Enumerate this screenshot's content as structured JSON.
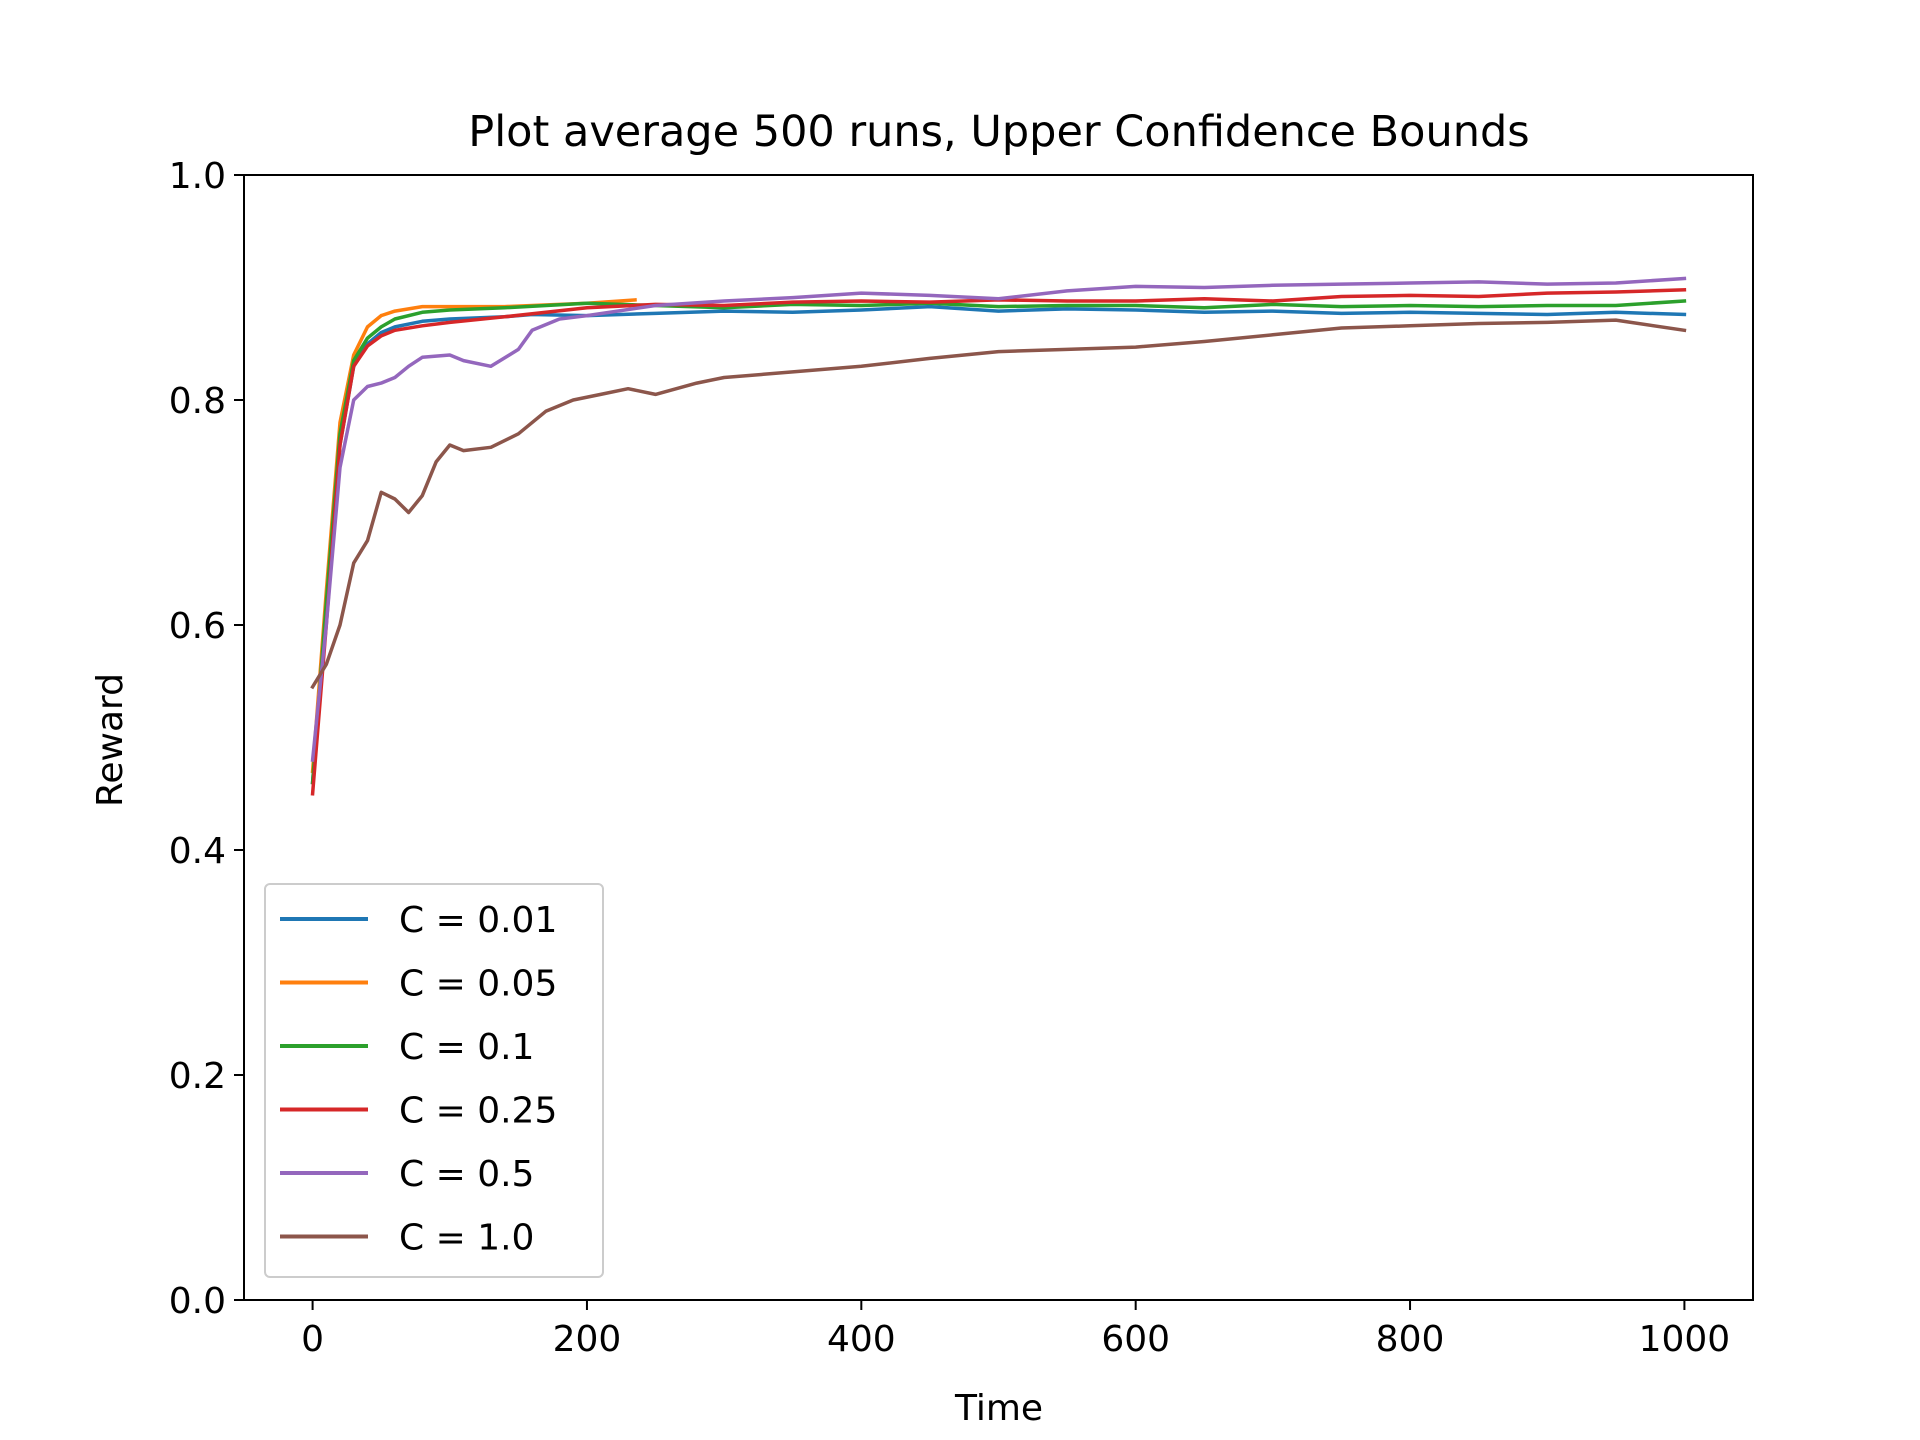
{
  "chart_data": {
    "type": "line",
    "title": "Plot average 500 runs, Upper Confidence Bounds",
    "xlabel": "Time",
    "ylabel": "Reward",
    "xlim": [
      -50,
      1050
    ],
    "ylim": [
      0,
      1
    ],
    "xticks": [
      0,
      200,
      400,
      600,
      800,
      1000
    ],
    "xtick_labels": [
      "0",
      "200",
      "400",
      "600",
      "800",
      "1000"
    ],
    "yticks": [
      0,
      0.2,
      0.4,
      0.6,
      0.8,
      1.0
    ],
    "ytick_labels": [
      "0.0",
      "0.2",
      "0.4",
      "0.6",
      "0.8",
      "1.0"
    ],
    "grid": false,
    "legend_position": "lower-left",
    "series": [
      {
        "name": "C = 0.01",
        "color": "#1f77b4",
        "x": [
          0,
          10,
          20,
          30,
          40,
          50,
          60,
          80,
          100,
          140,
          160,
          200,
          250,
          300,
          350,
          400,
          450,
          500,
          550,
          600,
          650,
          700,
          750,
          800,
          850,
          900,
          950,
          1000
        ],
        "y": [
          0.46,
          0.62,
          0.76,
          0.83,
          0.85,
          0.86,
          0.865,
          0.87,
          0.872,
          0.874,
          0.876,
          0.875,
          0.877,
          0.879,
          0.878,
          0.88,
          0.883,
          0.879,
          0.881,
          0.88,
          0.878,
          0.879,
          0.877,
          0.878,
          0.877,
          0.876,
          0.878,
          0.876
        ]
      },
      {
        "name": "C = 0.05",
        "color": "#ff7f0e",
        "x": [
          0,
          10,
          20,
          30,
          40,
          50,
          60,
          80,
          100,
          140,
          180,
          200,
          235
        ],
        "y": [
          0.47,
          0.63,
          0.78,
          0.84,
          0.865,
          0.875,
          0.879,
          0.883,
          0.883,
          0.883,
          0.885,
          0.886,
          0.889
        ]
      },
      {
        "name": "C = 0.1",
        "color": "#2ca02c",
        "x": [
          0,
          10,
          20,
          30,
          40,
          50,
          60,
          80,
          100,
          140,
          200,
          250,
          300,
          350,
          400,
          450,
          500,
          550,
          600,
          650,
          700,
          750,
          800,
          850,
          900,
          950,
          1000
        ],
        "y": [
          0.46,
          0.62,
          0.77,
          0.835,
          0.855,
          0.865,
          0.872,
          0.878,
          0.88,
          0.882,
          0.886,
          0.884,
          0.882,
          0.885,
          0.884,
          0.886,
          0.883,
          0.884,
          0.884,
          0.882,
          0.885,
          0.883,
          0.884,
          0.883,
          0.884,
          0.884,
          0.888
        ]
      },
      {
        "name": "C = 0.25",
        "color": "#d62728",
        "x": [
          0,
          10,
          20,
          30,
          40,
          50,
          60,
          80,
          100,
          140,
          200,
          250,
          300,
          350,
          400,
          450,
          500,
          550,
          600,
          650,
          700,
          750,
          800,
          850,
          900,
          950,
          1000
        ],
        "y": [
          0.45,
          0.6,
          0.76,
          0.83,
          0.848,
          0.857,
          0.862,
          0.866,
          0.869,
          0.874,
          0.882,
          0.885,
          0.884,
          0.887,
          0.888,
          0.887,
          0.889,
          0.888,
          0.888,
          0.89,
          0.888,
          0.892,
          0.893,
          0.892,
          0.895,
          0.896,
          0.898
        ]
      },
      {
        "name": "C = 0.5",
        "color": "#9467bd",
        "x": [
          0,
          10,
          20,
          30,
          40,
          50,
          60,
          70,
          80,
          100,
          110,
          130,
          150,
          160,
          180,
          200,
          250,
          300,
          350,
          400,
          450,
          500,
          550,
          600,
          650,
          700,
          750,
          800,
          850,
          900,
          950,
          1000
        ],
        "y": [
          0.48,
          0.6,
          0.74,
          0.8,
          0.812,
          0.815,
          0.82,
          0.83,
          0.838,
          0.84,
          0.835,
          0.83,
          0.845,
          0.862,
          0.872,
          0.875,
          0.884,
          0.888,
          0.891,
          0.895,
          0.893,
          0.89,
          0.897,
          0.901,
          0.9,
          0.902,
          0.903,
          0.904,
          0.905,
          0.903,
          0.904,
          0.908
        ]
      },
      {
        "name": "C = 1.0",
        "color": "#8c564b",
        "x": [
          0,
          10,
          20,
          30,
          40,
          50,
          60,
          70,
          80,
          90,
          100,
          110,
          130,
          150,
          170,
          190,
          210,
          230,
          250,
          280,
          300,
          350,
          400,
          450,
          500,
          550,
          600,
          650,
          700,
          750,
          800,
          850,
          900,
          950,
          1000
        ],
        "y": [
          0.545,
          0.565,
          0.6,
          0.655,
          0.675,
          0.718,
          0.712,
          0.7,
          0.715,
          0.745,
          0.76,
          0.755,
          0.758,
          0.77,
          0.79,
          0.8,
          0.805,
          0.81,
          0.805,
          0.815,
          0.82,
          0.825,
          0.83,
          0.837,
          0.843,
          0.845,
          0.847,
          0.852,
          0.858,
          0.864,
          0.866,
          0.868,
          0.869,
          0.871,
          0.862
        ]
      }
    ]
  }
}
